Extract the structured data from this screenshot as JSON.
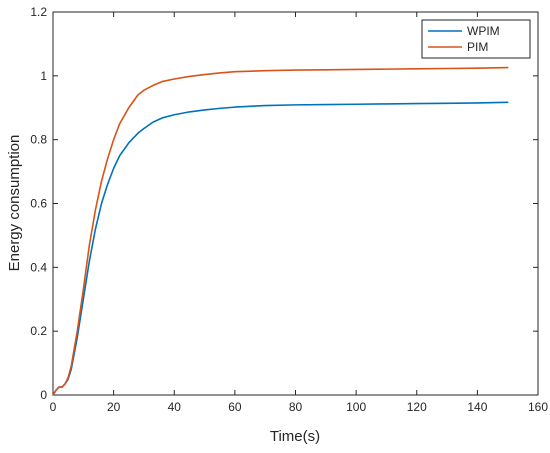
{
  "chart_data": {
    "type": "line",
    "title": "",
    "xlabel": "Time(s)",
    "ylabel": "Energy consumption",
    "xlim": [
      0,
      160
    ],
    "ylim": [
      0,
      1.2
    ],
    "xticks": [
      0,
      20,
      40,
      60,
      80,
      100,
      120,
      140,
      160
    ],
    "yticks": [
      0,
      0.2,
      0.4,
      0.6,
      0.8,
      1,
      1.2
    ],
    "xtick_labels": [
      "0",
      "20",
      "40",
      "60",
      "80",
      "100",
      "120",
      "140",
      "160"
    ],
    "ytick_labels": [
      "0",
      "0.2",
      "0.4",
      "0.6",
      "0.8",
      "1",
      "1.2"
    ],
    "grid": false,
    "legend_position": "top-right",
    "series": [
      {
        "name": "WPIM",
        "color": "#0072BD",
        "x": [
          0,
          1,
          2,
          3,
          4,
          5,
          6,
          8,
          10,
          12,
          14,
          16,
          18,
          20,
          22,
          25,
          28,
          30,
          33,
          36,
          40,
          45,
          50,
          55,
          60,
          70,
          80,
          90,
          100,
          110,
          120,
          130,
          140,
          150
        ],
        "y": [
          0,
          0.015,
          0.025,
          0.025,
          0.035,
          0.05,
          0.08,
          0.18,
          0.3,
          0.42,
          0.52,
          0.6,
          0.66,
          0.71,
          0.75,
          0.79,
          0.82,
          0.835,
          0.855,
          0.868,
          0.878,
          0.887,
          0.893,
          0.898,
          0.902,
          0.907,
          0.909,
          0.91,
          0.911,
          0.912,
          0.913,
          0.914,
          0.915,
          0.917
        ]
      },
      {
        "name": "PIM",
        "color": "#D95319",
        "x": [
          0,
          1,
          2,
          3,
          4,
          5,
          6,
          8,
          10,
          12,
          14,
          16,
          18,
          20,
          22,
          25,
          28,
          30,
          33,
          36,
          40,
          45,
          50,
          55,
          60,
          70,
          80,
          90,
          100,
          110,
          120,
          130,
          140,
          150
        ],
        "y": [
          0,
          0.015,
          0.025,
          0.025,
          0.035,
          0.055,
          0.09,
          0.2,
          0.33,
          0.47,
          0.58,
          0.67,
          0.74,
          0.8,
          0.85,
          0.9,
          0.94,
          0.955,
          0.97,
          0.982,
          0.99,
          0.998,
          1.004,
          1.009,
          1.013,
          1.016,
          1.018,
          1.019,
          1.02,
          1.021,
          1.022,
          1.023,
          1.024,
          1.026
        ]
      }
    ]
  }
}
